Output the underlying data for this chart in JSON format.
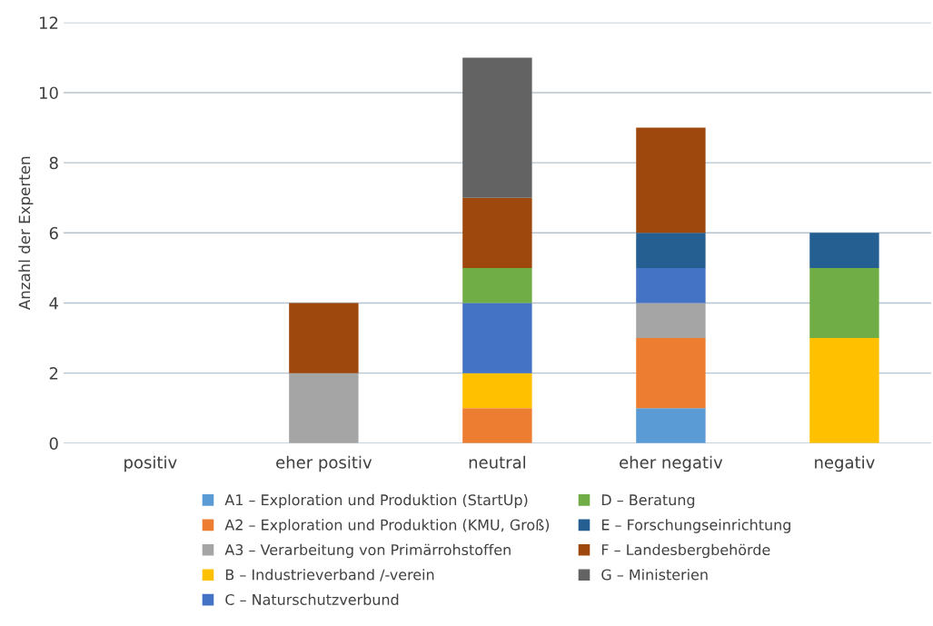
{
  "chart_data": {
    "type": "bar",
    "stacked": true,
    "ylabel": "Anzahl der Experten",
    "categories": [
      "positiv",
      "eher positiv",
      "neutral",
      "eher negativ",
      "negativ"
    ],
    "series": [
      {
        "name": "A1 – Exploration und Produktion (StartUp)",
        "color": "#5b9bd5",
        "values": [
          0,
          0,
          0,
          1,
          0
        ]
      },
      {
        "name": "A2 – Exploration und Produktion (KMU, Groß)",
        "color": "#ed7d31",
        "values": [
          0,
          0,
          1,
          2,
          0
        ]
      },
      {
        "name": "A3 – Verarbeitung von Primärrohstoffen",
        "color": "#a5a5a5",
        "values": [
          0,
          2,
          0,
          1,
          0
        ]
      },
      {
        "name": "B – Industrieverband /-verein",
        "color": "#ffc000",
        "values": [
          0,
          0,
          1,
          0,
          3
        ]
      },
      {
        "name": "C – Naturschutzverbund",
        "color": "#4472c4",
        "values": [
          0,
          0,
          2,
          1,
          0
        ]
      },
      {
        "name": "D – Beratung",
        "color": "#70ad47",
        "values": [
          0,
          0,
          1,
          0,
          2
        ]
      },
      {
        "name": "E – Forschungseinrichtung",
        "color": "#255e91",
        "values": [
          0,
          0,
          0,
          1,
          1
        ]
      },
      {
        "name": "F – Landesbergbehörde",
        "color": "#9e480e",
        "values": [
          0,
          2,
          2,
          3,
          0
        ]
      },
      {
        "name": "G – Ministerien",
        "color": "#636363",
        "values": [
          0,
          0,
          4,
          0,
          0
        ]
      }
    ],
    "ylim": [
      0,
      12
    ],
    "yticks": [
      0,
      2,
      4,
      6,
      8,
      10,
      12
    ],
    "grid": "y",
    "legend": "bottom"
  }
}
